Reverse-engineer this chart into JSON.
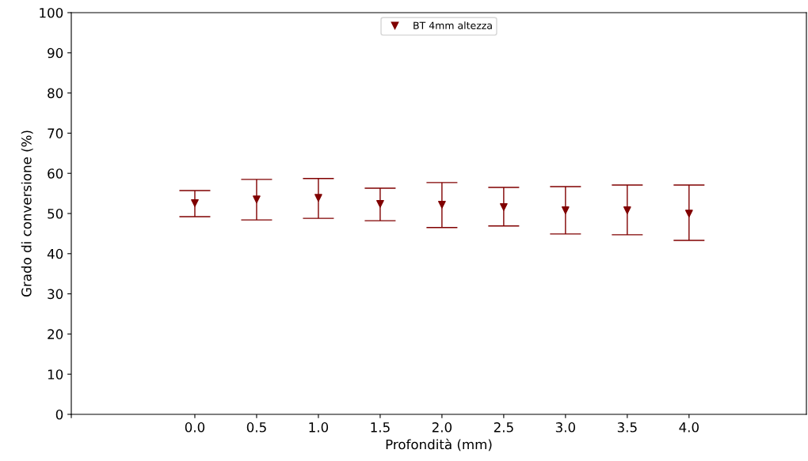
{
  "chart_data": {
    "type": "scatter",
    "xlabel": "Profondità (mm)",
    "ylabel": "Grado di conversione (%)",
    "x": [
      0.0,
      0.5,
      1.0,
      1.5,
      2.0,
      2.5,
      3.0,
      3.5,
      4.0
    ],
    "series": [
      {
        "name": "BT 4mm altezza",
        "color": "#800000",
        "values": [
          52.6,
          53.5,
          53.9,
          52.4,
          52.2,
          51.6,
          50.8,
          50.8,
          50.0
        ],
        "errors": [
          [
            49.2,
            55.7
          ],
          [
            48.4,
            58.5
          ],
          [
            48.8,
            58.7
          ],
          [
            48.2,
            56.3
          ],
          [
            46.5,
            57.7
          ],
          [
            46.9,
            56.5
          ],
          [
            44.9,
            56.7
          ],
          [
            44.7,
            57.1
          ],
          [
            43.3,
            57.1
          ]
        ]
      }
    ],
    "xlim": [
      -1,
      4.95
    ],
    "xticks": [
      {
        "value": -1,
        "label": null
      },
      {
        "value": 0,
        "label": "0.0"
      },
      {
        "value": 0.5,
        "label": "0.5"
      },
      {
        "value": 1,
        "label": "1.0"
      },
      {
        "value": 1.5,
        "label": "1.5"
      },
      {
        "value": 2,
        "label": "2.0"
      },
      {
        "value": 2.5,
        "label": "2.5"
      },
      {
        "value": 3,
        "label": "3.0"
      },
      {
        "value": 3.5,
        "label": "3.5"
      },
      {
        "value": 4,
        "label": "4.0"
      }
    ],
    "ylim": [
      0,
      100
    ],
    "yticks": [
      0,
      10,
      20,
      30,
      40,
      50,
      60,
      70,
      80,
      90,
      100
    ],
    "marker": "triangle",
    "legend": "top",
    "grid": false
  }
}
